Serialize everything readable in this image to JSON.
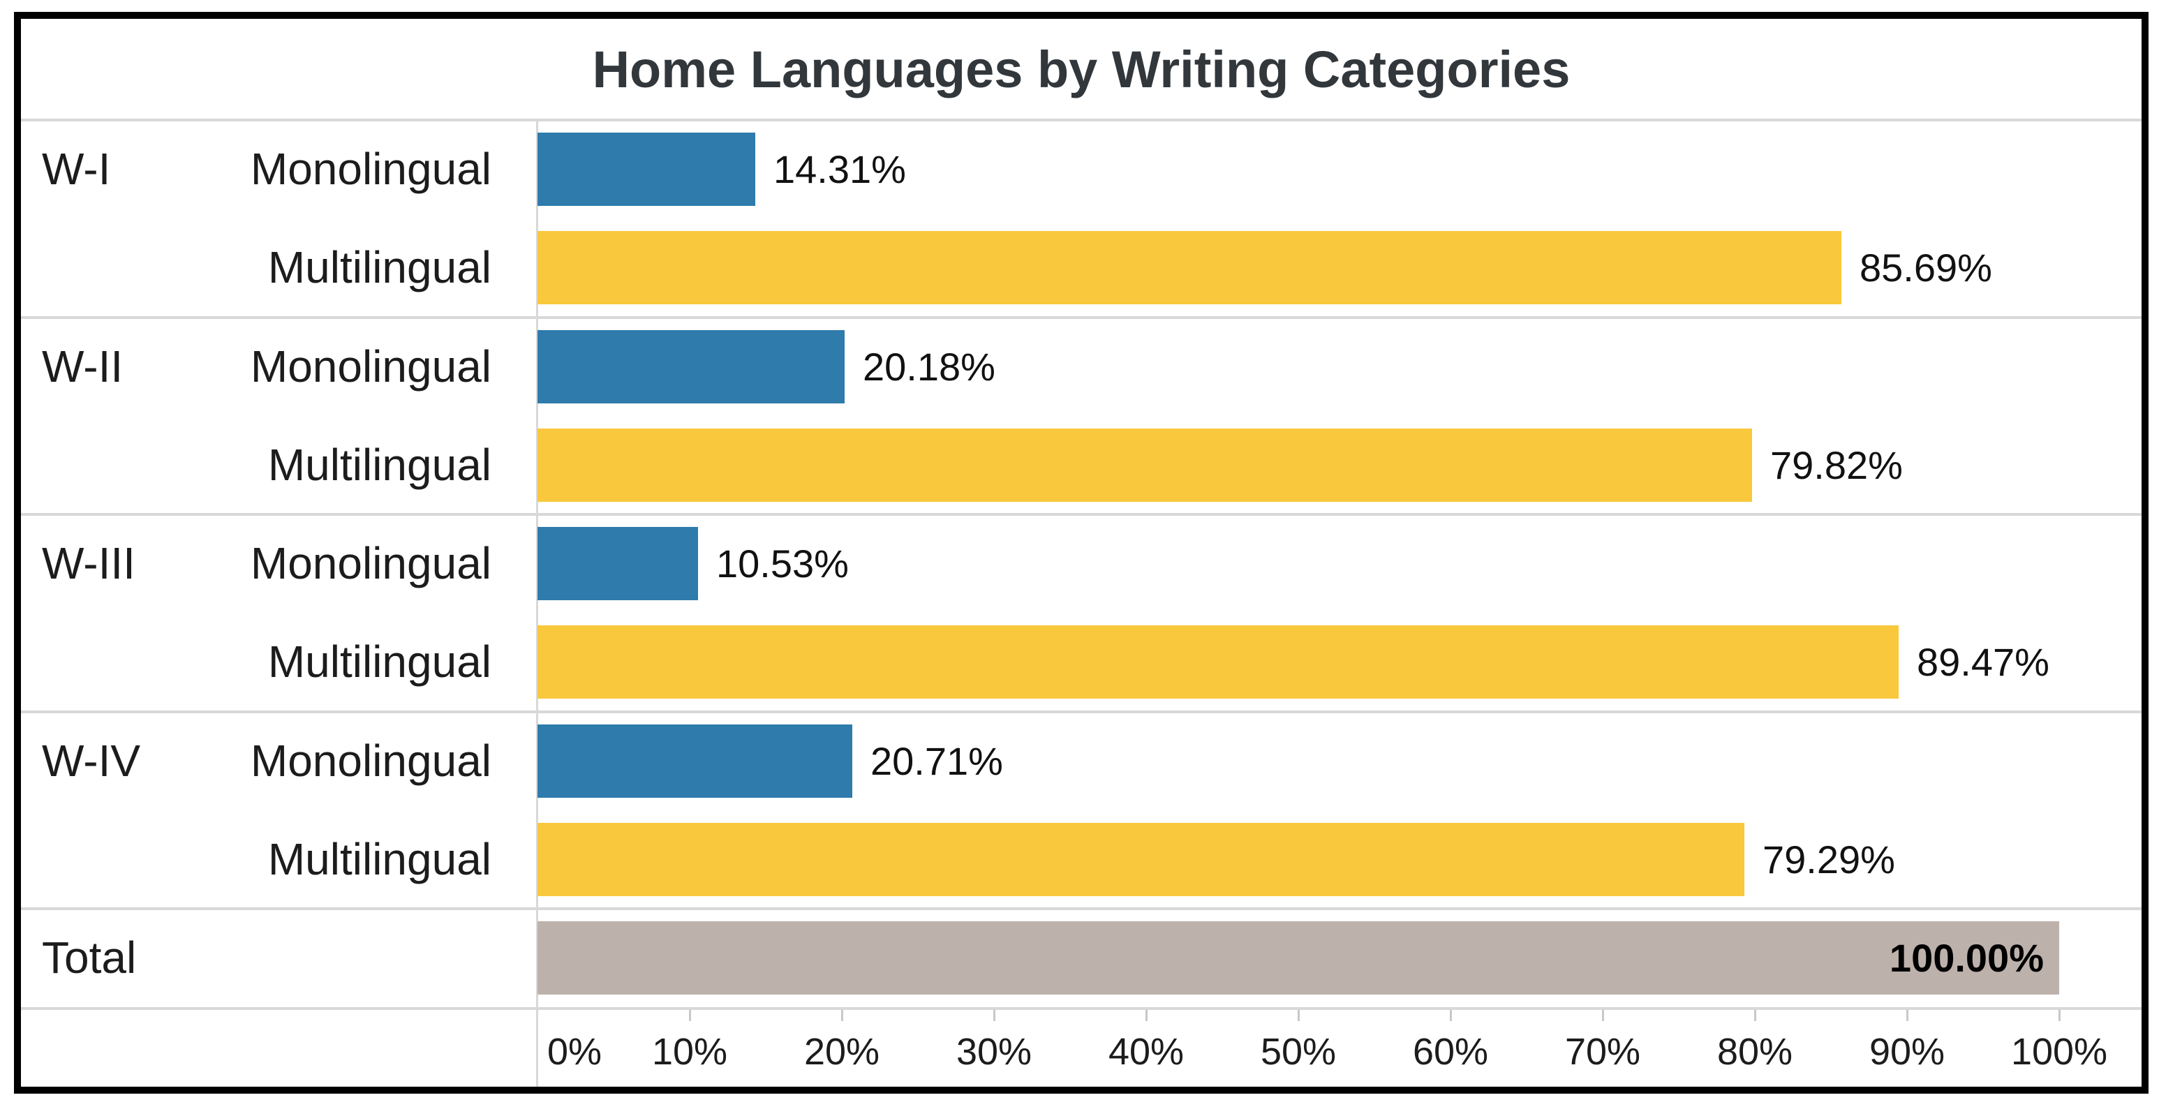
{
  "title": "Home Languages by Writing Categories",
  "colors": {
    "monolingual_bar": "#2e7bac",
    "multilingual_bar": "#f9c83c",
    "total_bar": "#bdb1ab",
    "gridline": "#d8d8d8",
    "border": "#000000",
    "title_text": "#32373c",
    "label_text": "#1c1c1c"
  },
  "chart_data": {
    "type": "bar",
    "orientation": "horizontal",
    "title": "Home Languages by Writing Categories",
    "xlabel": "",
    "ylabel": "",
    "xlim": [
      0,
      100
    ],
    "grid": "row-dividers-only",
    "legend": "none",
    "groups": [
      {
        "category": "W-I",
        "bars": [
          {
            "label": "Monolingual",
            "series": "Monolingual",
            "value": 14.31,
            "display": "14.31%"
          },
          {
            "label": "Multilingual",
            "series": "Multilingual",
            "value": 85.69,
            "display": "85.69%"
          }
        ]
      },
      {
        "category": "W-II",
        "bars": [
          {
            "label": "Monolingual",
            "series": "Monolingual",
            "value": 20.18,
            "display": "20.18%"
          },
          {
            "label": "Multilingual",
            "series": "Multilingual",
            "value": 79.82,
            "display": "79.82%"
          }
        ]
      },
      {
        "category": "W-III",
        "bars": [
          {
            "label": "Monolingual",
            "series": "Monolingual",
            "value": 10.53,
            "display": "10.53%"
          },
          {
            "label": "Multilingual",
            "series": "Multilingual",
            "value": 89.47,
            "display": "89.47%"
          }
        ]
      },
      {
        "category": "W-IV",
        "bars": [
          {
            "label": "Monolingual",
            "series": "Monolingual",
            "value": 20.71,
            "display": "20.71%"
          },
          {
            "label": "Multilingual",
            "series": "Multilingual",
            "value": 79.29,
            "display": "79.29%"
          }
        ]
      },
      {
        "category": "Total",
        "bars": [
          {
            "label": "",
            "series": "Total",
            "value": 100.0,
            "display": "100.00%"
          }
        ]
      }
    ],
    "x_axis": {
      "min": 0,
      "max": 100,
      "tick_step": 10,
      "ticks": [
        "0%",
        "10%",
        "20%",
        "30%",
        "40%",
        "50%",
        "60%",
        "70%",
        "80%",
        "90%",
        "100%"
      ]
    }
  }
}
